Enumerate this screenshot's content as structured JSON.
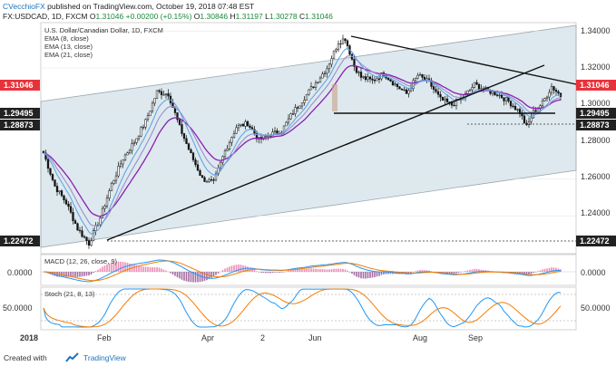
{
  "header": {
    "author": "CVecchioFX",
    "published_text": "published on TradingView.com, October 19, 2018 07:48 EST",
    "symbol_line": "FX:USDCAD, 1D, FXCM",
    "ohlc": {
      "o_label": "O",
      "o": "1.31046",
      "change": "+0.00200 (+0.15%)",
      "o2_label": "O",
      "o2": "1.30846",
      "h_label": "H",
      "h": "1.31197",
      "l_label": "L",
      "l": "1.30278",
      "c_label": "C",
      "c": "1.31046"
    }
  },
  "main_legend": {
    "title": "U.S. Dollar/Canadian Dollar, 1D, FXCM",
    "ema8": "EMA (8, close)",
    "ema13": "EMA (13, close)",
    "ema21": "EMA (21, close)"
  },
  "macd_legend": "MACD (12, 26, close, 9)",
  "stoch_legend": "Stoch (21, 8, 13)",
  "footer": {
    "created_with": "Created with",
    "brand": "TradingView"
  },
  "colors": {
    "candle": "#111111",
    "ema8": "#5aa0e0",
    "ema13": "#9a8fd0",
    "ema21": "#8b1fb0",
    "channel_fill": "#dde9ee",
    "current_price": "#e8323a",
    "level_box": "#222222",
    "macd_line": "#2196f3",
    "signal_line": "#f57c00",
    "hist_pos": "#e35d99",
    "hist_neg": "#7a2f7a"
  },
  "chart_data": {
    "type": "candlestick",
    "title": "U.S. Dollar/Canadian Dollar, 1D, FXCM",
    "x_tick_labels": [
      "2018",
      "Feb",
      "Apr",
      "2",
      "Jun",
      "Aug",
      "Sep"
    ],
    "y_tick_labels": [
      "1.34000",
      "1.32000",
      "1.30000",
      "1.28000",
      "1.26000",
      "1.24000"
    ],
    "ylim": [
      1.2195,
      1.3445
    ],
    "current_price": "1.31046",
    "levels": [
      "1.29495",
      "1.28873",
      "1.22472"
    ],
    "macd_tick_label": "0.0000",
    "stoch_tick_label": "50.0000",
    "price_path": [
      [
        0,
        1.274
      ],
      [
        5,
        1.256
      ],
      [
        10,
        1.247
      ],
      [
        15,
        1.233
      ],
      [
        20,
        1.225
      ],
      [
        25,
        1.239
      ],
      [
        30,
        1.257
      ],
      [
        35,
        1.271
      ],
      [
        40,
        1.28
      ],
      [
        45,
        1.291
      ],
      [
        50,
        1.307
      ],
      [
        55,
        1.306
      ],
      [
        60,
        1.288
      ],
      [
        65,
        1.273
      ],
      [
        70,
        1.26
      ],
      [
        75,
        1.258
      ],
      [
        80,
        1.275
      ],
      [
        85,
        1.288
      ],
      [
        90,
        1.29
      ],
      [
        95,
        1.281
      ],
      [
        100,
        1.284
      ],
      [
        105,
        1.286
      ],
      [
        110,
        1.296
      ],
      [
        115,
        1.304
      ],
      [
        120,
        1.312
      ],
      [
        125,
        1.32
      ],
      [
        130,
        1.334
      ],
      [
        133,
        1.336
      ],
      [
        137,
        1.321
      ],
      [
        140,
        1.315
      ],
      [
        145,
        1.313
      ],
      [
        150,
        1.317
      ],
      [
        155,
        1.311
      ],
      [
        160,
        1.306
      ],
      [
        165,
        1.316
      ],
      [
        170,
        1.312
      ],
      [
        175,
        1.303
      ],
      [
        180,
        1.3
      ],
      [
        185,
        1.304
      ],
      [
        190,
        1.311
      ],
      [
        195,
        1.308
      ],
      [
        200,
        1.306
      ],
      [
        205,
        1.302
      ],
      [
        210,
        1.296
      ],
      [
        213,
        1.288
      ],
      [
        216,
        1.296
      ],
      [
        220,
        1.301
      ],
      [
        224,
        1.31
      ],
      [
        228,
        1.305
      ]
    ]
  }
}
